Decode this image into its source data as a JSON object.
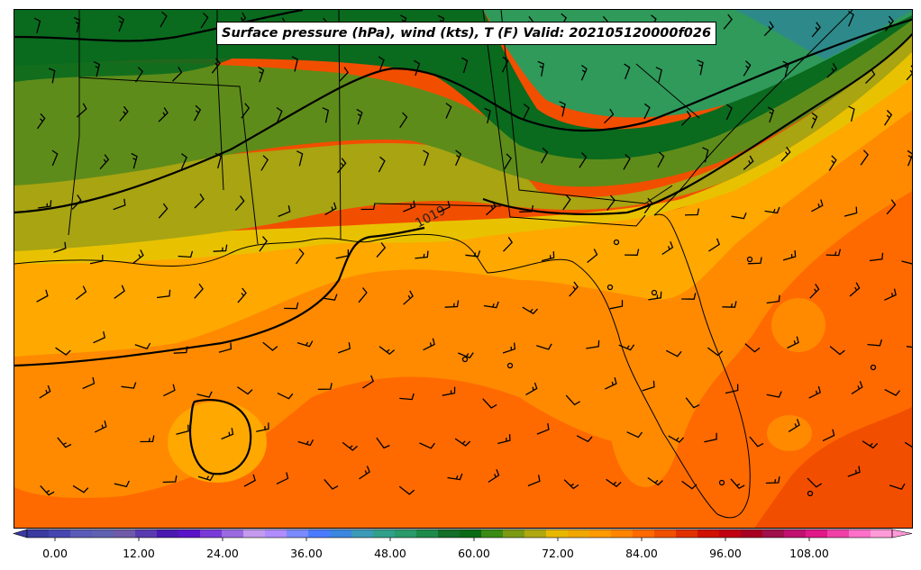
{
  "map": {
    "title": "Surface pressure (hPa), wind (kts), T (F) Valid: 202105120000f026",
    "isobar_label": "1019",
    "temperature_fill_colors": {
      "cool_teal": "#2e8a8a",
      "green_dark": "#0a6a1e",
      "green_mid": "#2f9a5a",
      "olive": "#5e8c1a",
      "olive_yellow": "#a8a412",
      "yellow": "#e8c200",
      "light_orange": "#ffa800",
      "orange": "#ff8a00",
      "deep_orange": "#ff6a00",
      "red_orange": "#f04a00"
    },
    "line_color": "#000000"
  },
  "colorbar": {
    "unit": "F",
    "ticks": [
      "0.00",
      "12.00",
      "24.00",
      "36.00",
      "48.00",
      "60.00",
      "72.00",
      "84.00",
      "96.00",
      "108.00"
    ],
    "colors": [
      "#3a3aa0",
      "#4646b0",
      "#5a5ab8",
      "#6060b0",
      "#6e5aa8",
      "#5a3ab0",
      "#4a1ab0",
      "#5a14c8",
      "#7a3ad8",
      "#9a6ae0",
      "#c49aee",
      "#b08cff",
      "#7a8aff",
      "#4a7aff",
      "#3a86e0",
      "#3a9ab8",
      "#30a08a",
      "#2a9a6a",
      "#1e8a4a",
      "#146e28",
      "#0a6a14",
      "#3a8a14",
      "#7a9a14",
      "#b0a810",
      "#e8b800",
      "#f0a800",
      "#ff9a00",
      "#ff8400",
      "#ff6a00",
      "#f05000",
      "#e03000",
      "#d01000",
      "#c00010",
      "#a80020",
      "#a0104a",
      "#c01070",
      "#e01888",
      "#f040a8",
      "#ff70c8",
      "#ff9ad8"
    ]
  }
}
